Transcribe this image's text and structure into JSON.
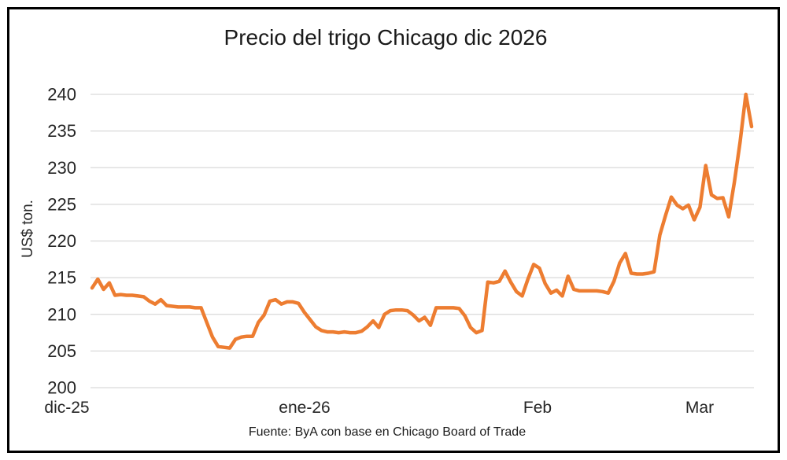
{
  "chart_data": {
    "type": "line",
    "title": "Precio del trigo Chicago dic 2026",
    "ylabel": "US$ ton.",
    "source": "Fuente: ByA con base en Chicago Board of Trade",
    "series_name": "Precio del trigo Chicago dic 2026",
    "ylim": [
      200,
      240
    ],
    "yticks": [
      200,
      205,
      210,
      215,
      220,
      225,
      230,
      235,
      240
    ],
    "xticks": [
      "dic-25",
      "ene-26",
      "Feb",
      "Mar"
    ],
    "grid": true,
    "legend_position": "none",
    "line_color": "#ED7D31",
    "grid_color": "#D9D9D9",
    "text_color": "#262626",
    "values": [
      213.6,
      214.8,
      213.4,
      214.3,
      212.6,
      212.7,
      212.6,
      212.6,
      212.5,
      212.4,
      211.8,
      211.4,
      212.0,
      211.2,
      211.1,
      211.0,
      211.0,
      211.0,
      210.9,
      210.9,
      208.9,
      206.9,
      205.6,
      205.5,
      205.4,
      206.6,
      206.9,
      207.0,
      207.0,
      208.9,
      209.9,
      211.8,
      212.0,
      211.4,
      211.7,
      211.7,
      211.5,
      210.3,
      209.3,
      208.3,
      207.8,
      207.6,
      207.6,
      207.5,
      207.6,
      207.5,
      207.5,
      207.7,
      208.3,
      209.1,
      208.2,
      210.0,
      210.5,
      210.6,
      210.6,
      210.5,
      209.9,
      209.1,
      209.6,
      208.5,
      210.9,
      210.9,
      210.9,
      210.9,
      210.8,
      209.8,
      208.2,
      207.5,
      207.8,
      214.4,
      214.3,
      214.5,
      215.9,
      214.4,
      213.1,
      212.5,
      214.8,
      216.8,
      216.3,
      214.2,
      212.9,
      213.3,
      212.5,
      215.2,
      213.4,
      213.2,
      213.2,
      213.2,
      213.2,
      213.1,
      212.9,
      214.5,
      217.0,
      218.3,
      215.6,
      215.5,
      215.5,
      215.6,
      215.8,
      220.8,
      223.5,
      226.0,
      224.9,
      224.4,
      224.9,
      222.9,
      224.6,
      230.3,
      226.3,
      225.8,
      225.9,
      223.3,
      228.0,
      233.5,
      240.0,
      235.6
    ]
  }
}
